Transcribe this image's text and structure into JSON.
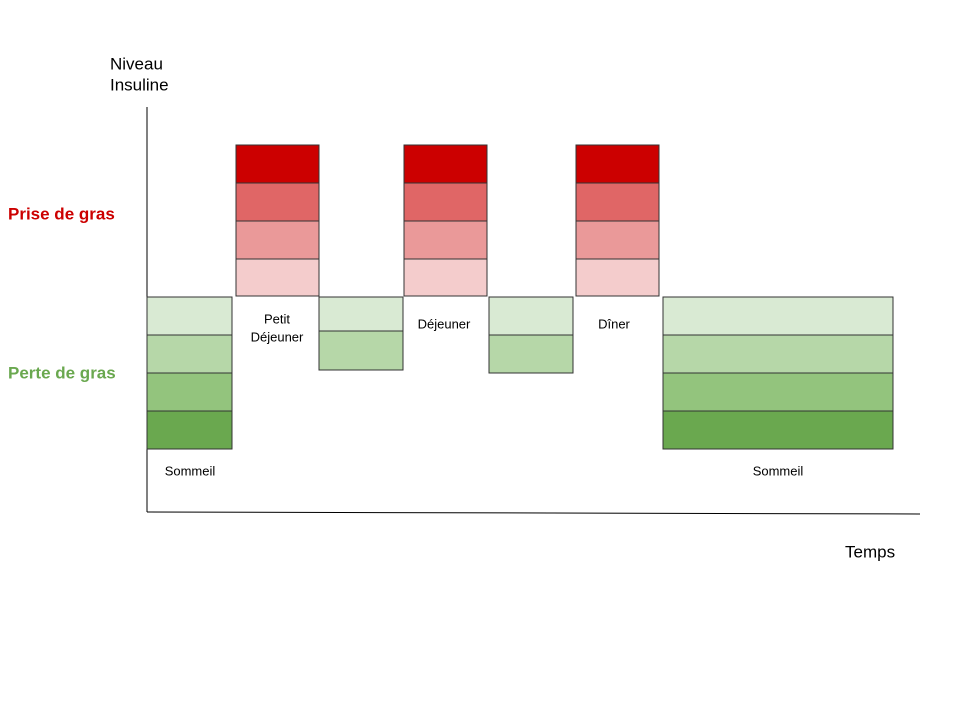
{
  "y_axis_label": [
    "Niveau",
    "Insuline"
  ],
  "x_axis_label": "Temps",
  "zones": {
    "gain": "Prise de gras",
    "loss": "Perte de gras"
  },
  "periods": [
    {
      "label": [
        "Sommeil"
      ]
    },
    {
      "label": [
        "Petit",
        "Déjeuner"
      ]
    },
    {
      "label": [
        "Déjeuner"
      ]
    },
    {
      "label": [
        "Dîner"
      ]
    },
    {
      "label": [
        "Sommeil"
      ]
    }
  ]
}
